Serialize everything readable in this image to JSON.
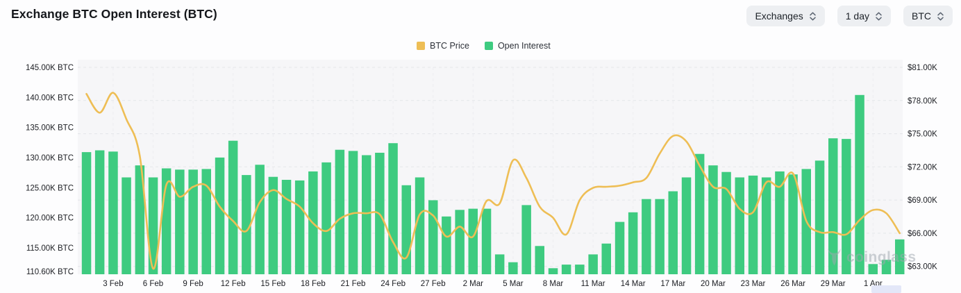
{
  "header": {
    "title": "Exchange BTC Open Interest (BTC)",
    "controls": {
      "exchanges": "Exchanges",
      "interval": "1 day",
      "unit": "BTC"
    }
  },
  "legend": {
    "items": [
      {
        "label": "BTC Price",
        "color": "#EEBE55"
      },
      {
        "label": "Open Interest",
        "color": "#3ECB80"
      }
    ]
  },
  "watermark": "coinglass",
  "chart_data": {
    "type": "bar+line",
    "title": "Exchange BTC Open Interest (BTC)",
    "legend_position": "top-center",
    "grid": {
      "horizontal": "dashed",
      "vertical": "dashed"
    },
    "x": [
      "1 Feb",
      "2 Feb",
      "3 Feb",
      "4 Feb",
      "5 Feb",
      "6 Feb",
      "7 Feb",
      "8 Feb",
      "9 Feb",
      "10 Feb",
      "11 Feb",
      "12 Feb",
      "13 Feb",
      "14 Feb",
      "15 Feb",
      "16 Feb",
      "17 Feb",
      "18 Feb",
      "19 Feb",
      "20 Feb",
      "21 Feb",
      "22 Feb",
      "23 Feb",
      "24 Feb",
      "25 Feb",
      "26 Feb",
      "27 Feb",
      "28 Feb",
      "1 Mar",
      "2 Mar",
      "3 Mar",
      "4 Mar",
      "5 Mar",
      "6 Mar",
      "7 Mar",
      "8 Mar",
      "9 Mar",
      "10 Mar",
      "11 Mar",
      "12 Mar",
      "13 Mar",
      "14 Mar",
      "15 Mar",
      "16 Mar",
      "17 Mar",
      "18 Mar",
      "19 Mar",
      "20 Mar",
      "21 Mar",
      "22 Mar",
      "23 Mar",
      "24 Mar",
      "25 Mar",
      "26 Mar",
      "27 Mar",
      "28 Mar",
      "29 Mar",
      "30 Mar",
      "31 Mar",
      "1 Apr",
      "2 Apr",
      "3 Apr"
    ],
    "x_tick_labels": [
      "3 Feb",
      "6 Feb",
      "9 Feb",
      "12 Feb",
      "15 Feb",
      "18 Feb",
      "21 Feb",
      "24 Feb",
      "27 Feb",
      "2 Mar",
      "5 Mar",
      "8 Mar",
      "11 Mar",
      "14 Mar",
      "17 Mar",
      "20 Mar",
      "23 Mar",
      "26 Mar",
      "29 Mar",
      "1 Apr"
    ],
    "tick_first_index": 2,
    "tick_step": 3,
    "series": [
      {
        "name": "Open Interest",
        "type": "bar",
        "axis": "left",
        "unit": "K BTC",
        "color": "#3ECB80",
        "values": [
          130.9,
          131.2,
          131.0,
          126.7,
          128.7,
          126.7,
          128.2,
          128.0,
          128.0,
          128.1,
          130.0,
          132.8,
          127.1,
          128.8,
          126.8,
          126.3,
          126.2,
          127.7,
          129.2,
          131.3,
          131.1,
          130.4,
          130.8,
          132.4,
          125.4,
          126.7,
          122.9,
          120.2,
          121.3,
          121.5,
          121.5,
          113.9,
          112.6,
          122.1,
          115.3,
          111.6,
          112.2,
          112.2,
          113.9,
          115.7,
          119.3,
          120.9,
          123.1,
          123.1,
          124.4,
          126.7,
          130.6,
          128.7,
          127.6,
          126.7,
          127.0,
          126.7,
          127.7,
          127.2,
          128.1,
          129.5,
          133.2,
          133.1,
          140.4,
          112.3,
          113.0,
          116.4
        ]
      },
      {
        "name": "BTC Price",
        "type": "line",
        "axis": "right",
        "unit": "$K",
        "color": "#EEBE55",
        "values": [
          78.6,
          76.9,
          78.7,
          76.3,
          73.0,
          62.8,
          70.4,
          69.3,
          70.2,
          70.3,
          68.4,
          67.1,
          66.2,
          68.8,
          69.9,
          69.1,
          68.4,
          66.9,
          66.2,
          67.3,
          67.8,
          67.8,
          67.7,
          65.2,
          63.8,
          67.7,
          67.6,
          65.7,
          66.6,
          65.7,
          68.9,
          68.7,
          72.6,
          71.0,
          68.4,
          67.4,
          65.9,
          69.0,
          70.1,
          70.2,
          70.3,
          70.6,
          71.0,
          73.2,
          74.8,
          74.3,
          72.1,
          70.2,
          70.0,
          68.2,
          67.9,
          70.6,
          70.2,
          71.4,
          67.1,
          66.1,
          66.1,
          65.9,
          67.2,
          68.1,
          67.8,
          66.0
        ]
      }
    ],
    "y_axis_left": {
      "unit": "BTC",
      "min": 110.6,
      "max": 145,
      "tick_labels": [
        "145.00K BTC",
        "140.00K BTC",
        "135.00K BTC",
        "130.00K BTC",
        "125.00K BTC",
        "120.00K BTC",
        "115.00K BTC",
        "110.60K BTC"
      ],
      "tick_values": [
        145,
        140,
        135,
        130,
        125,
        120,
        115,
        110.6
      ]
    },
    "y_axis_right": {
      "unit": "USD",
      "min": 63,
      "max": 81,
      "tick_labels": [
        "$81.00K",
        "$78.00K",
        "$75.00K",
        "$72.00K",
        "$69.00K",
        "$66.00K",
        "$63.00K"
      ],
      "tick_values": [
        81,
        78,
        75,
        72,
        69,
        66,
        63
      ]
    }
  }
}
